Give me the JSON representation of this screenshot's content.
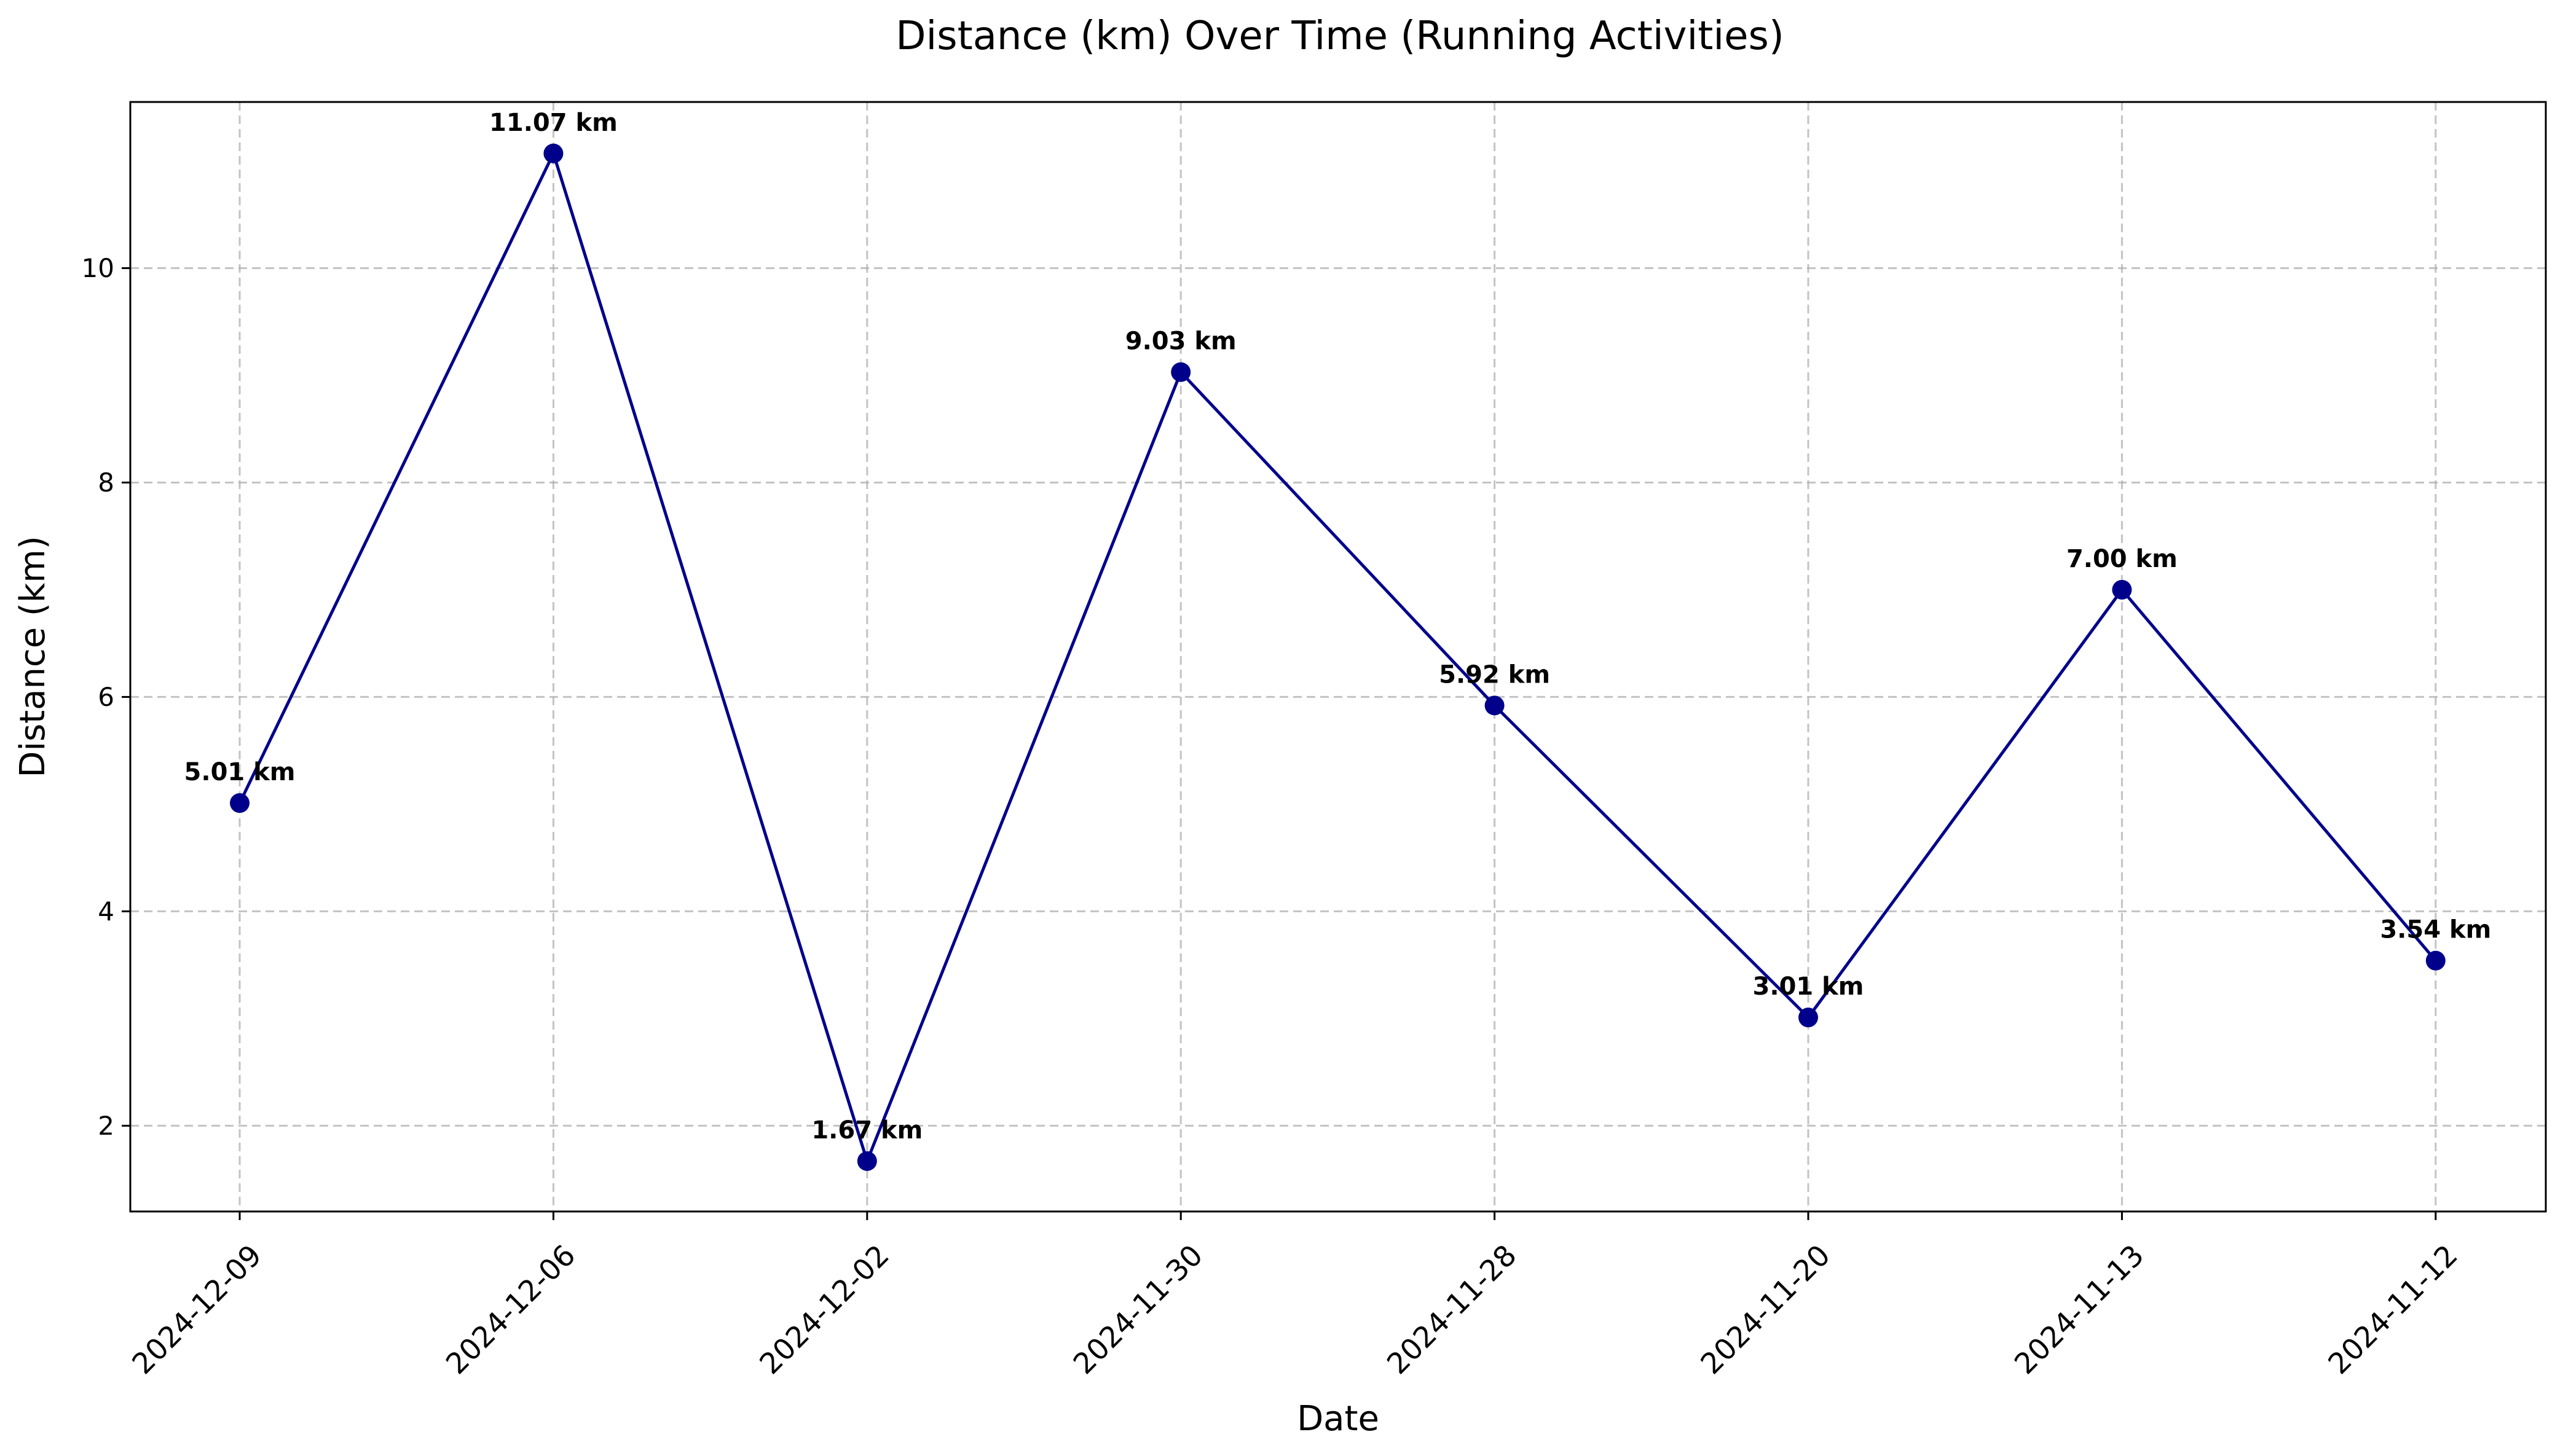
{
  "chart_data": {
    "type": "line",
    "title": "Distance (km) Over Time (Running Activities)",
    "xlabel": "Date",
    "ylabel": "Distance (km)",
    "categories": [
      "2024-12-09",
      "2024-12-06",
      "2024-12-02",
      "2024-11-30",
      "2024-11-28",
      "2024-11-20",
      "2024-11-13",
      "2024-11-12"
    ],
    "values": [
      5.01,
      11.07,
      1.67,
      9.03,
      5.92,
      3.01,
      7.0,
      3.54
    ],
    "data_labels": [
      "5.01 km",
      "11.07 km",
      "1.67 km",
      "9.03 km",
      "5.92 km",
      "3.01 km",
      "7.00 km",
      "3.54 km"
    ],
    "yticks": [
      2,
      4,
      6,
      8,
      10
    ],
    "ylim": [
      1.2,
      11.55
    ],
    "grid": true,
    "line_color": "#00008b",
    "marker": "circle"
  }
}
